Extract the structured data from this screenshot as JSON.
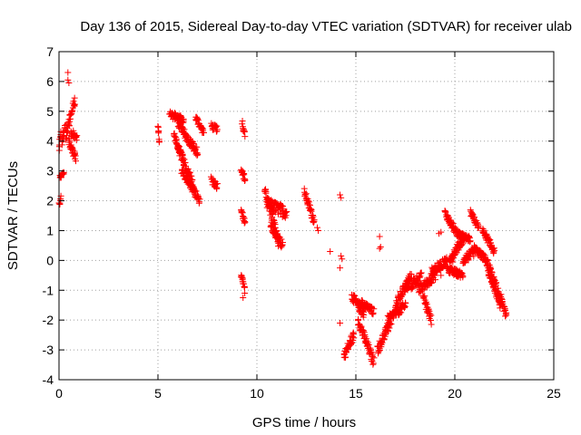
{
  "chart_data": {
    "type": "scatter",
    "title": "Day 136 of 2015, Sidereal Day-to-day VTEC variation (SDTVAR) for receiver ulab",
    "xlabel": "GPS time / hours",
    "ylabel": "SDTVAR / TECUs",
    "xlim": [
      0,
      25
    ],
    "ylim": [
      -4,
      7
    ],
    "x_ticks": [
      0,
      5,
      10,
      15,
      20,
      25
    ],
    "y_ticks": [
      -4,
      -3,
      -2,
      -1,
      0,
      1,
      2,
      3,
      4,
      5,
      6,
      7
    ],
    "x_tick_labels": [
      "0",
      "5",
      "10",
      "15",
      "20",
      "25"
    ],
    "y_tick_labels": [
      "-4",
      "-3",
      "-2",
      "-1",
      "0",
      "1",
      "2",
      "3",
      "4",
      "5",
      "6",
      "7"
    ],
    "grid": true,
    "marker": "+",
    "color": "#ff0000",
    "segments": [
      {
        "x0": 0.0,
        "x1": 0.1,
        "y0": 3.7,
        "y1": 4.3,
        "jitter": 0.12
      },
      {
        "x0": 0.0,
        "x1": 0.1,
        "y0": 1.9,
        "y1": 2.1,
        "jitter": 0.08
      },
      {
        "x0": 0.05,
        "x1": 0.25,
        "y0": 2.8,
        "y1": 2.95,
        "jitter": 0.06
      },
      {
        "x0": 0.15,
        "x1": 0.35,
        "y0": 4.0,
        "y1": 4.5,
        "jitter": 0.15
      },
      {
        "x0": 0.35,
        "x1": 0.8,
        "y0": 4.2,
        "y1": 5.4,
        "jitter": 0.15
      },
      {
        "x0": 0.5,
        "x1": 0.85,
        "y0": 4.0,
        "y1": 3.4,
        "jitter": 0.12
      },
      {
        "x0": 0.6,
        "x1": 0.9,
        "y0": 4.3,
        "y1": 4.1,
        "jitter": 0.12
      },
      {
        "x0": 5.0,
        "x1": 5.05,
        "y0": 4.6,
        "y1": 3.9,
        "jitter": 0.12
      },
      {
        "x0": 5.6,
        "x1": 6.3,
        "y0": 4.9,
        "y1": 4.7,
        "jitter": 0.12
      },
      {
        "x0": 6.0,
        "x1": 7.0,
        "y0": 4.6,
        "y1": 3.6,
        "jitter": 0.15
      },
      {
        "x0": 5.8,
        "x1": 6.2,
        "y0": 4.2,
        "y1": 3.5,
        "jitter": 0.12
      },
      {
        "x0": 6.0,
        "x1": 6.8,
        "y0": 3.8,
        "y1": 2.5,
        "jitter": 0.15
      },
      {
        "x0": 6.2,
        "x1": 7.1,
        "y0": 3.0,
        "y1": 2.0,
        "jitter": 0.12
      },
      {
        "x0": 6.9,
        "x1": 7.3,
        "y0": 4.8,
        "y1": 4.3,
        "jitter": 0.1
      },
      {
        "x0": 7.7,
        "x1": 8.0,
        "y0": 4.5,
        "y1": 4.4,
        "jitter": 0.1
      },
      {
        "x0": 7.7,
        "x1": 8.0,
        "y0": 2.7,
        "y1": 2.5,
        "jitter": 0.12
      },
      {
        "x0": 9.2,
        "x1": 9.4,
        "y0": 3.1,
        "y1": 2.7,
        "jitter": 0.1
      },
      {
        "x0": 9.2,
        "x1": 9.4,
        "y0": 1.7,
        "y1": 1.2,
        "jitter": 0.1
      },
      {
        "x0": 9.25,
        "x1": 9.4,
        "y0": 4.6,
        "y1": 4.2,
        "jitter": 0.08
      },
      {
        "x0": 9.2,
        "x1": 9.4,
        "y0": -0.5,
        "y1": -1.0,
        "jitter": 0.1
      },
      {
        "x0": 10.4,
        "x1": 11.1,
        "y0": 2.4,
        "y1": 0.6,
        "jitter": 0.2
      },
      {
        "x0": 10.5,
        "x1": 11.5,
        "y0": 1.9,
        "y1": 1.6,
        "jitter": 0.2
      },
      {
        "x0": 10.7,
        "x1": 11.3,
        "y0": 1.2,
        "y1": 0.5,
        "jitter": 0.15
      },
      {
        "x0": 12.4,
        "x1": 12.9,
        "y0": 2.3,
        "y1": 1.3,
        "jitter": 0.12
      },
      {
        "x0": 14.8,
        "x1": 15.4,
        "y0": -1.2,
        "y1": -1.8,
        "jitter": 0.15
      },
      {
        "x0": 14.4,
        "x1": 14.9,
        "y0": -3.2,
        "y1": -2.5,
        "jitter": 0.15
      },
      {
        "x0": 15.1,
        "x1": 15.9,
        "y0": -2.0,
        "y1": -3.4,
        "jitter": 0.15
      },
      {
        "x0": 15.2,
        "x1": 15.9,
        "y0": -1.4,
        "y1": -1.7,
        "jitter": 0.12
      },
      {
        "x0": 16.1,
        "x1": 16.8,
        "y0": -3.0,
        "y1": -2.0,
        "jitter": 0.15
      },
      {
        "x0": 16.6,
        "x1": 17.5,
        "y0": -2.0,
        "y1": -1.5,
        "jitter": 0.15
      },
      {
        "x0": 17.0,
        "x1": 17.8,
        "y0": -1.5,
        "y1": -0.5,
        "jitter": 0.15
      },
      {
        "x0": 17.5,
        "x1": 18.3,
        "y0": -0.9,
        "y1": -0.6,
        "jitter": 0.2
      },
      {
        "x0": 18.2,
        "x1": 19.0,
        "y0": -1.0,
        "y1": -0.5,
        "jitter": 0.15
      },
      {
        "x0": 18.4,
        "x1": 18.8,
        "y0": -1.2,
        "y1": -2.0,
        "jitter": 0.15
      },
      {
        "x0": 18.8,
        "x1": 19.6,
        "y0": -0.4,
        "y1": 0.0,
        "jitter": 0.15
      },
      {
        "x0": 19.5,
        "x1": 20.1,
        "y0": 1.6,
        "y1": 0.9,
        "jitter": 0.12
      },
      {
        "x0": 19.7,
        "x1": 20.5,
        "y0": 0.0,
        "y1": 0.8,
        "jitter": 0.15
      },
      {
        "x0": 20.1,
        "x1": 20.8,
        "y0": 0.9,
        "y1": 0.7,
        "jitter": 0.1
      },
      {
        "x0": 19.6,
        "x1": 20.4,
        "y0": -0.3,
        "y1": -0.5,
        "jitter": 0.12
      },
      {
        "x0": 20.4,
        "x1": 21.0,
        "y0": 0.0,
        "y1": 0.3,
        "jitter": 0.15
      },
      {
        "x0": 20.8,
        "x1": 21.2,
        "y0": 1.6,
        "y1": 1.1,
        "jitter": 0.1
      },
      {
        "x0": 21.0,
        "x1": 21.6,
        "y0": 0.4,
        "y1": 0.0,
        "jitter": 0.12
      },
      {
        "x0": 21.4,
        "x1": 22.0,
        "y0": 1.0,
        "y1": 0.3,
        "jitter": 0.12
      },
      {
        "x0": 21.7,
        "x1": 22.6,
        "y0": -0.3,
        "y1": -1.8,
        "jitter": 0.2
      },
      {
        "x0": 21.6,
        "x1": 22.3,
        "y0": 0.0,
        "y1": -1.5,
        "jitter": 0.2
      }
    ],
    "points": [
      [
        0.45,
        6.3
      ],
      [
        0.45,
        6.05
      ],
      [
        0.5,
        5.95
      ],
      [
        9.3,
        -1.25
      ],
      [
        13.1,
        1.0
      ],
      [
        13.05,
        1.1
      ],
      [
        13.7,
        0.3
      ],
      [
        14.2,
        2.2
      ],
      [
        14.25,
        2.1
      ],
      [
        14.2,
        -0.25
      ],
      [
        14.25,
        0.15
      ],
      [
        14.3,
        0.05
      ],
      [
        14.2,
        -2.1
      ],
      [
        16.2,
        0.8
      ],
      [
        16.25,
        0.45
      ],
      [
        16.2,
        0.4
      ],
      [
        19.2,
        0.9
      ],
      [
        19.3,
        0.95
      ],
      [
        19.3,
        -0.5
      ],
      [
        19.9,
        -0.05
      ]
    ]
  }
}
